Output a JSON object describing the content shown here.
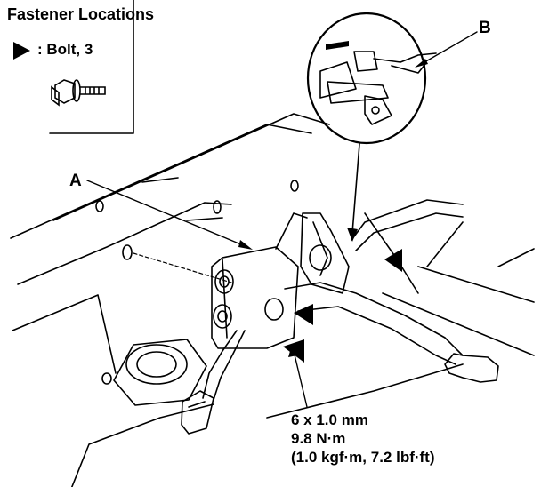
{
  "header": {
    "title": "Fastener Locations"
  },
  "legend": {
    "symbol_icon": "filled-triangle-arrow-icon",
    "label": ": Bolt, 3",
    "bolt_icon": "flange-bolt-icon"
  },
  "callouts": {
    "a": "A",
    "b": "B"
  },
  "torque_spec": {
    "size": "6 x 1.0 mm",
    "torque_nm": "9.8 N·m",
    "torque_alt": "(1.0 kgf·m, 7.2 lbf·ft)"
  },
  "colors": {
    "ink": "#000000",
    "paper": "#ffffff"
  }
}
